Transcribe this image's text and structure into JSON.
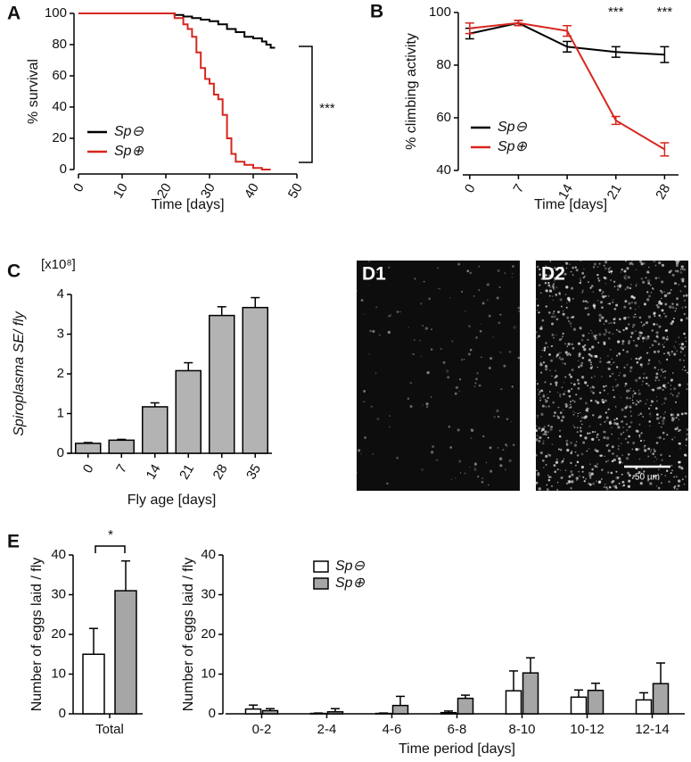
{
  "chart_data": [
    {
      "type": "step",
      "panel": "A",
      "xlabel": "Time [days]",
      "ylabel": "% survival",
      "xlim": [
        0,
        50
      ],
      "xticks": [
        0,
        10,
        20,
        30,
        40,
        50
      ],
      "ylim": [
        0,
        100
      ],
      "yticks": [
        0,
        20,
        40,
        60,
        80,
        100
      ],
      "legend_position": "lower left",
      "annotation": "***",
      "series": [
        {
          "name": "Sp⊖",
          "color": "#000000",
          "x": [
            0,
            20,
            22,
            24,
            26,
            28,
            30,
            32,
            34,
            36,
            38,
            40,
            42,
            43,
            44,
            45
          ],
          "values": [
            100,
            100,
            99,
            98,
            97,
            96,
            95,
            93,
            90,
            88,
            85,
            84,
            82,
            80,
            78,
            78
          ]
        },
        {
          "name": "Sp⊕",
          "color": "#d7261e",
          "x": [
            0,
            21,
            22,
            24,
            25,
            26,
            27,
            28,
            29,
            30,
            31,
            32,
            33,
            34,
            35,
            36,
            38,
            40,
            42,
            44
          ],
          "values": [
            100,
            100,
            97,
            93,
            90,
            85,
            75,
            65,
            58,
            55,
            48,
            45,
            35,
            20,
            10,
            5,
            3,
            1,
            0,
            0
          ]
        }
      ]
    },
    {
      "type": "line",
      "panel": "B",
      "xlabel": "Time [days]",
      "ylabel": "% climbing activity",
      "x": [
        0,
        7,
        14,
        21,
        28
      ],
      "xlim": [
        -1,
        30
      ],
      "xticks": [
        0,
        7,
        14,
        21,
        28
      ],
      "ylim": [
        40,
        100
      ],
      "yticks": [
        40,
        60,
        80,
        100
      ],
      "legend_position": "lower left",
      "annotations": [
        {
          "x": 21,
          "text": "***"
        },
        {
          "x": 28,
          "text": "***"
        }
      ],
      "series": [
        {
          "name": "Sp⊖",
          "color": "#000000",
          "values": [
            92,
            96,
            87,
            85,
            84
          ],
          "errors": [
            2,
            1,
            2,
            2,
            3
          ]
        },
        {
          "name": "Sp⊕",
          "color": "#d7261e",
          "values": [
            94,
            96,
            93,
            59,
            48
          ],
          "errors": [
            2,
            1,
            2,
            1.5,
            2.5
          ]
        }
      ]
    },
    {
      "type": "bar",
      "panel": "C",
      "xlabel": "Fly age [days]",
      "ylabel": "Spiroplasma SE/ fly",
      "multiplier": "[x10⁸]",
      "categories": [
        "0",
        "7",
        "14",
        "21",
        "28",
        "35"
      ],
      "values": [
        0.25,
        0.33,
        1.17,
        2.08,
        3.47,
        3.67
      ],
      "errors": [
        0.02,
        0.02,
        0.1,
        0.2,
        0.22,
        0.25
      ],
      "color": "#b3b3b3",
      "ylim": [
        0,
        4
      ],
      "yticks": [
        0,
        1,
        2,
        3,
        4
      ]
    },
    {
      "type": "grouped_bar",
      "panel": "E",
      "ylabel": "Number of eggs laid / fly",
      "annotation": "*",
      "categories": [
        "Total"
      ],
      "ylim": [
        0,
        40
      ],
      "yticks": [
        0,
        10,
        20,
        30,
        40
      ],
      "series": [
        {
          "color": "#ffffff",
          "values": [
            15
          ],
          "errors": [
            6.5
          ]
        },
        {
          "color": "#a6a6a6",
          "values": [
            31
          ],
          "errors": [
            7.5
          ]
        }
      ]
    },
    {
      "type": "grouped_bar",
      "xlabel": "Time period [days]",
      "ylabel": "Number of eggs laid / fly",
      "categories": [
        "0-2",
        "2-4",
        "4-6",
        "6-8",
        "8-10",
        "10-12",
        "12-14"
      ],
      "ylim": [
        0,
        40
      ],
      "yticks": [
        0,
        10,
        20,
        30,
        40
      ],
      "legend_position": "upper left",
      "series": [
        {
          "name": "Sp⊖",
          "color": "#ffffff",
          "values": [
            1.2,
            0.1,
            0.1,
            0.3,
            5.8,
            4.2,
            3.5
          ],
          "errors": [
            1,
            0.1,
            0.1,
            0.4,
            5,
            1.8,
            1.8
          ]
        },
        {
          "name": "Sp⊕",
          "color": "#a6a6a6",
          "values": [
            0.8,
            0.5,
            2.1,
            3.9,
            10.3,
            5.9,
            7.6
          ],
          "errors": [
            0.5,
            0.8,
            2.3,
            0.8,
            3.8,
            1.8,
            5.2
          ]
        }
      ]
    }
  ],
  "images": [
    {
      "label": "D1"
    },
    {
      "label": "D2",
      "scale_bar": "50 µm"
    }
  ]
}
